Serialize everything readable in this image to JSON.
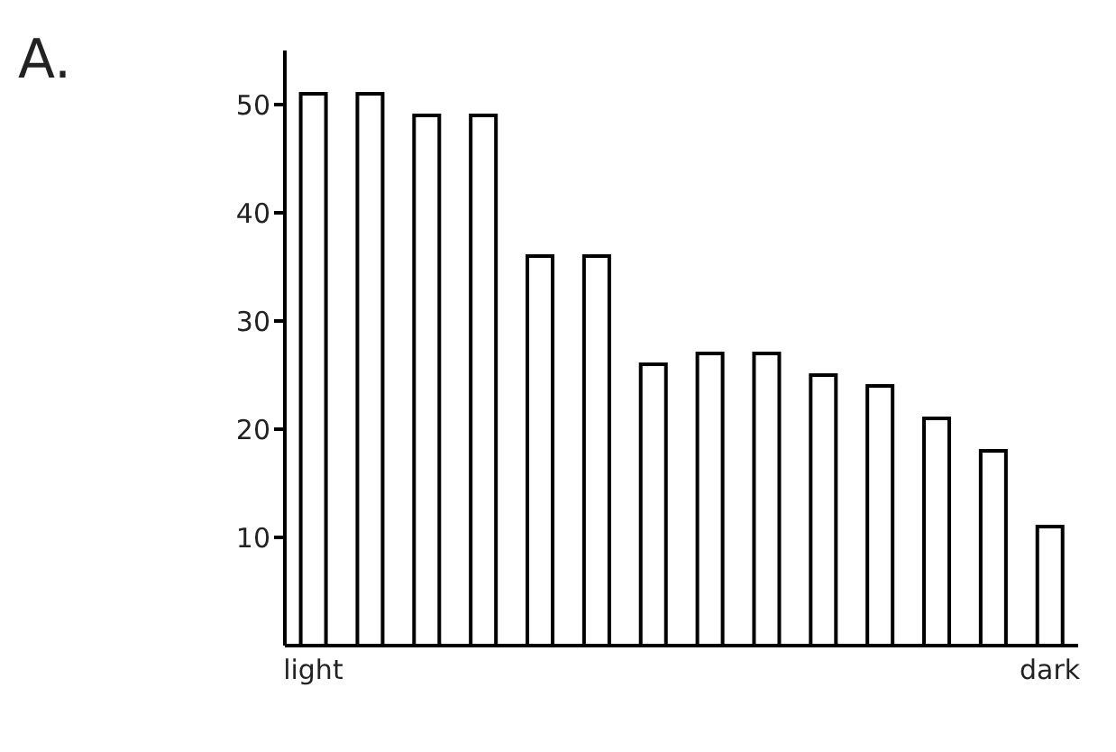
{
  "chart_data": {
    "type": "bar",
    "title": "A.",
    "categories": [
      "light",
      null,
      null,
      null,
      null,
      null,
      null,
      null,
      null,
      null,
      null,
      null,
      null,
      "dark"
    ],
    "values": [
      51,
      51,
      49,
      49,
      36,
      36,
      26,
      27,
      27,
      25,
      24,
      21,
      18,
      11
    ],
    "color": "#ffffff",
    "ylim": [
      0,
      55
    ],
    "yticks": [
      10,
      20,
      30,
      40,
      50
    ],
    "grid": false
  }
}
